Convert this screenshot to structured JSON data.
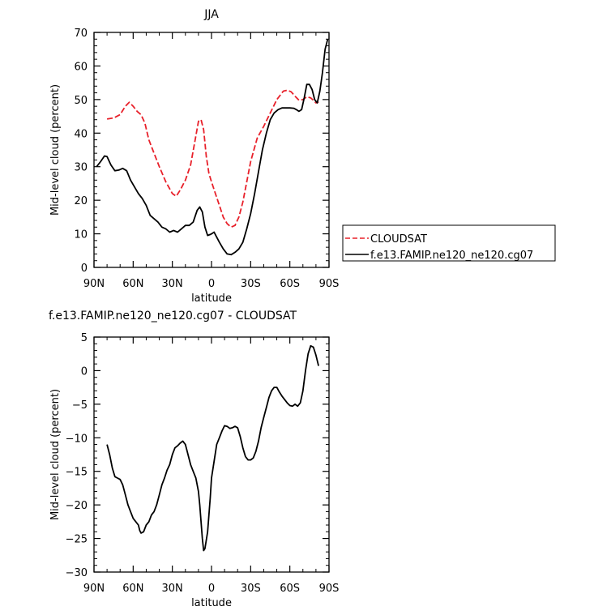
{
  "chart_data": [
    {
      "type": "line",
      "title": "JJA",
      "xlabel": "latitude",
      "ylabel": "Mid-level cloud (percent)",
      "xlim": [
        90,
        -90
      ],
      "ylim": [
        0,
        70
      ],
      "x_ticks": [
        {
          "value": 90,
          "label": "90N"
        },
        {
          "value": 60,
          "label": "60N"
        },
        {
          "value": 30,
          "label": "30N"
        },
        {
          "value": 0,
          "label": "0"
        },
        {
          "value": -30,
          "label": "30S"
        },
        {
          "value": -60,
          "label": "60S"
        },
        {
          "value": -90,
          "label": "90S"
        }
      ],
      "y_ticks": [
        0,
        10,
        20,
        30,
        40,
        50,
        60,
        70
      ],
      "grid": false,
      "legend_position": "right",
      "series": [
        {
          "name": "CLOUDSAT",
          "color": "#e8202a",
          "dash": "dashed",
          "x": [
            80,
            75,
            70,
            66,
            63,
            60,
            57,
            54,
            51,
            48,
            45,
            40,
            35,
            30,
            27,
            24,
            20,
            16,
            13,
            10,
            8,
            6,
            4,
            2,
            0,
            -3,
            -6,
            -9,
            -12,
            -15,
            -18,
            -21,
            -24,
            -27,
            -30,
            -35,
            -40,
            -45,
            -50,
            -55,
            -58,
            -61,
            -64,
            -67,
            -70,
            -73,
            -76,
            -78,
            -80,
            -82
          ],
          "y": [
            44.2,
            44.5,
            45.5,
            48.0,
            49.2,
            48.0,
            46.5,
            45.5,
            43.0,
            38.0,
            35.0,
            30.0,
            25.5,
            22.0,
            21.2,
            23.0,
            26.0,
            30.5,
            37.0,
            43.5,
            44.0,
            41.0,
            33.0,
            28.0,
            25.5,
            22.0,
            18.5,
            15.0,
            13.0,
            12.0,
            12.5,
            15.0,
            19.5,
            25.5,
            31.5,
            38.5,
            42.0,
            46.0,
            50.0,
            52.5,
            52.8,
            52.3,
            51.0,
            49.8,
            50.0,
            50.8,
            50.5,
            49.8,
            49.0,
            49.3
          ]
        },
        {
          "name": "f.e13.FAMIP.ne120_ne120.cg07",
          "color": "#000000",
          "dash": "solid",
          "x": [
            88,
            85,
            82,
            80,
            77,
            74,
            71,
            68,
            65,
            62,
            59,
            56,
            53,
            50,
            47,
            44,
            41,
            38,
            35,
            32,
            29,
            26,
            23,
            20,
            17,
            14,
            11,
            9,
            7,
            5,
            3,
            1,
            0,
            -2,
            -4,
            -6,
            -9,
            -12,
            -15,
            -18,
            -21,
            -24,
            -27,
            -30,
            -33,
            -36,
            -39,
            -42,
            -45,
            -48,
            -51,
            -54,
            -57,
            -60,
            -63,
            -65,
            -67,
            -69,
            -71,
            -73,
            -75,
            -77,
            -79,
            -81,
            -83,
            -85,
            -87,
            -89
          ],
          "y": [
            30.0,
            31.5,
            33.2,
            33.0,
            30.5,
            28.8,
            29.0,
            29.5,
            28.8,
            26.0,
            24.0,
            22.0,
            20.5,
            18.5,
            15.5,
            14.5,
            13.5,
            12.0,
            11.5,
            10.5,
            11.0,
            10.5,
            11.5,
            12.5,
            12.5,
            13.5,
            17.0,
            18.0,
            16.5,
            12.0,
            9.5,
            9.8,
            10.0,
            10.5,
            9.0,
            7.5,
            5.5,
            4.0,
            3.8,
            4.5,
            5.5,
            7.5,
            11.5,
            16.0,
            22.0,
            28.5,
            35.0,
            40.0,
            44.0,
            46.0,
            47.0,
            47.5,
            47.5,
            47.5,
            47.4,
            47.0,
            46.5,
            47.0,
            50.5,
            54.5,
            54.5,
            53.0,
            50.0,
            49.0,
            52.5,
            58.0,
            65.0,
            68.0
          ]
        }
      ]
    },
    {
      "type": "line",
      "title": "f.e13.FAMIP.ne120_ne120.cg07 - CLOUDSAT",
      "xlabel": "latitude",
      "ylabel": "Mid-level cloud (percent)",
      "xlim": [
        90,
        -90
      ],
      "ylim": [
        -30,
        5
      ],
      "x_ticks": [
        {
          "value": 90,
          "label": "90N"
        },
        {
          "value": 60,
          "label": "60N"
        },
        {
          "value": 30,
          "label": "30N"
        },
        {
          "value": 0,
          "label": "0"
        },
        {
          "value": -30,
          "label": "30S"
        },
        {
          "value": -60,
          "label": "60S"
        },
        {
          "value": -90,
          "label": "90S"
        }
      ],
      "y_ticks": [
        -30,
        -25,
        -20,
        -15,
        -10,
        -5,
        0,
        5
      ],
      "grid": false,
      "series": [
        {
          "color": "#000000",
          "dash": "solid",
          "x": [
            80,
            78,
            76,
            74,
            72,
            70,
            68,
            66,
            64,
            62,
            60,
            58,
            56,
            55,
            54,
            52,
            50,
            48,
            46,
            44,
            42,
            40,
            38,
            36,
            34,
            32,
            30,
            28,
            26,
            24,
            22,
            20,
            18,
            16,
            14,
            12,
            10,
            9,
            8,
            7,
            6,
            5,
            3,
            1,
            0,
            -2,
            -4,
            -6,
            -8,
            -10,
            -12,
            -14,
            -16,
            -18,
            -20,
            -22,
            -24,
            -26,
            -28,
            -30,
            -32,
            -34,
            -36,
            -38,
            -40,
            -42,
            -44,
            -46,
            -48,
            -50,
            -52,
            -54,
            -56,
            -58,
            -60,
            -62,
            -64,
            -66,
            -68,
            -70,
            -72,
            -74,
            -76,
            -78,
            -80,
            -82
          ],
          "y": [
            -11.0,
            -12.5,
            -14.5,
            -15.8,
            -16.0,
            -16.2,
            -17.0,
            -18.5,
            -20.0,
            -21.0,
            -22.0,
            -22.5,
            -23.0,
            -23.8,
            -24.2,
            -24.0,
            -23.0,
            -22.5,
            -21.5,
            -21.0,
            -20.0,
            -18.5,
            -17.0,
            -16.0,
            -14.8,
            -14.0,
            -12.5,
            -11.5,
            -11.2,
            -10.8,
            -10.5,
            -11.0,
            -12.5,
            -14.0,
            -15.0,
            -16.0,
            -18.0,
            -20.0,
            -22.5,
            -25.0,
            -26.8,
            -26.5,
            -24.0,
            -19.0,
            -16.0,
            -13.5,
            -11.0,
            -10.0,
            -9.0,
            -8.2,
            -8.3,
            -8.6,
            -8.5,
            -8.3,
            -8.5,
            -9.8,
            -11.5,
            -12.8,
            -13.3,
            -13.3,
            -13.0,
            -12.0,
            -10.5,
            -8.5,
            -7.0,
            -5.5,
            -4.0,
            -3.0,
            -2.5,
            -2.5,
            -3.2,
            -3.8,
            -4.3,
            -4.8,
            -5.2,
            -5.3,
            -5.0,
            -5.3,
            -4.8,
            -3.0,
            0.0,
            2.5,
            3.7,
            3.5,
            2.3,
            0.7
          ]
        }
      ]
    }
  ]
}
